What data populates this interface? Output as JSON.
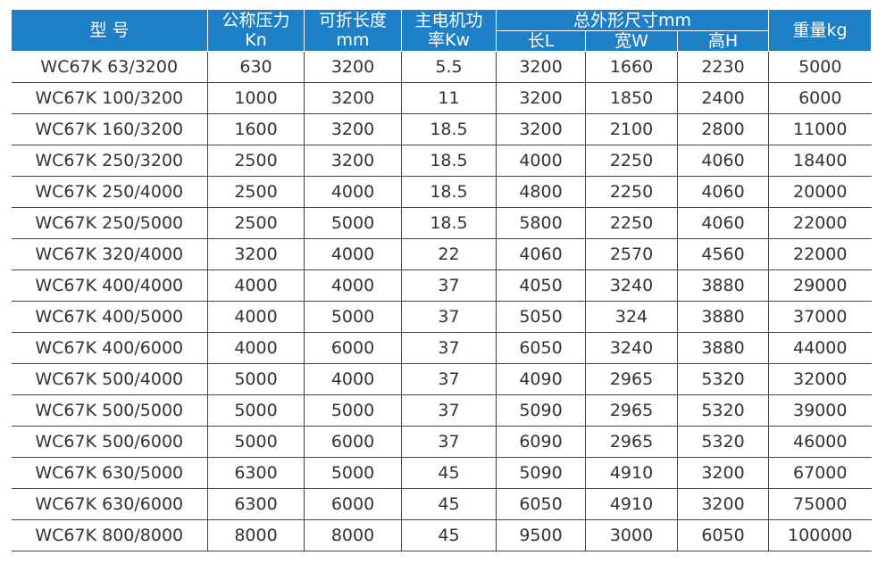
{
  "header": {
    "columns": [
      {
        "lines": [
          "型 号"
        ]
      },
      {
        "lines": [
          "公称压力",
          "Kn"
        ]
      },
      {
        "lines": [
          "可折长度",
          "mm"
        ]
      },
      {
        "lines": [
          "主电机功",
          "率Kw"
        ]
      },
      {
        "lines": [
          "总外形尺寸mm"
        ],
        "sub": [
          "长L",
          "宽W",
          "高H"
        ]
      },
      {
        "lines": [
          "重量kg"
        ]
      }
    ]
  },
  "table": {
    "rows": [
      [
        "WC67K 63/3200",
        "630",
        "3200",
        "5.5",
        "3200",
        "1660",
        "2230",
        "5000"
      ],
      [
        "WC67K 100/3200",
        "1000",
        "3200",
        "11",
        "3200",
        "1850",
        "2400",
        "6000"
      ],
      [
        "WC67K 160/3200",
        "1600",
        "3200",
        "18.5",
        "3200",
        "2100",
        "2800",
        "11000"
      ],
      [
        "WC67K 250/3200",
        "2500",
        "3200",
        "18.5",
        "4000",
        "2250",
        "4060",
        "18400"
      ],
      [
        "WC67K 250/4000",
        "2500",
        "4000",
        "18.5",
        "4800",
        "2250",
        "4060",
        "20000"
      ],
      [
        "WC67K 250/5000",
        "2500",
        "5000",
        "18.5",
        "5800",
        "2250",
        "4060",
        "22000"
      ],
      [
        "WC67K 320/4000",
        "3200",
        "4000",
        "22",
        "4060",
        "2570",
        "4560",
        "22000"
      ],
      [
        "WC67K 400/4000",
        "4000",
        "4000",
        "37",
        "4050",
        "3240",
        "3880",
        "29000"
      ],
      [
        "WC67K 400/5000",
        "4000",
        "5000",
        "37",
        "5050",
        "324",
        "3880",
        "37000"
      ],
      [
        "WC67K 400/6000",
        "4000",
        "6000",
        "37",
        "6050",
        "3240",
        "3880",
        "44000"
      ],
      [
        "WC67K 500/4000",
        "5000",
        "4000",
        "37",
        "4090",
        "2965",
        "5320",
        "32000"
      ],
      [
        "WC67K 500/5000",
        "5000",
        "5000",
        "37",
        "5090",
        "2965",
        "5320",
        "39000"
      ],
      [
        "WC67K 500/6000",
        "5000",
        "6000",
        "37",
        "6090",
        "2965",
        "5320",
        "46000"
      ],
      [
        "WC67K 630/5000",
        "6300",
        "5000",
        "45",
        "5090",
        "4910",
        "3200",
        "67000"
      ],
      [
        "WC67K 630/6000",
        "6300",
        "6000",
        "45",
        "6050",
        "4910",
        "3200",
        "75000"
      ],
      [
        "WC67K 800/8000",
        "8000",
        "8000",
        "45",
        "9500",
        "3000",
        "6050",
        "100000"
      ]
    ]
  }
}
